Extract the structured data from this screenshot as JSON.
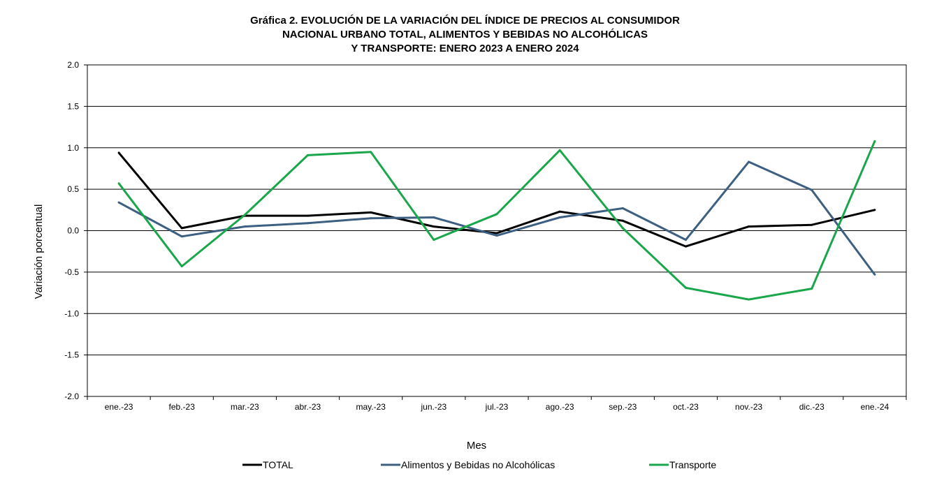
{
  "chart_data": {
    "type": "line",
    "title": [
      "Gráfica 2. EVOLUCIÓN DE LA VARIACIÓN DEL ÍNDICE DE PRECIOS AL CONSUMIDOR",
      "NACIONAL URBANO TOTAL, ALIMENTOS Y BEBIDAS NO ALCOHÓLICAS",
      "Y TRANSPORTE: ENERO 2023 A ENERO 2024"
    ],
    "xlabel": "Mes",
    "ylabel": "Variación porcentual",
    "ylim": [
      -2.0,
      2.0
    ],
    "yticks": [
      2.0,
      1.5,
      1.0,
      0.5,
      0.0,
      -0.5,
      -1.0,
      -1.5,
      -2.0
    ],
    "ytick_labels": [
      "2.0",
      "1.5",
      "1.0",
      "0.5",
      "0.0",
      "-0.5",
      "-1.0",
      "-1.5",
      "-2.0"
    ],
    "grid": true,
    "legend_position": "bottom",
    "categories": [
      "ene.-23",
      "feb.-23",
      "mar.-23",
      "abr.-23",
      "may.-23",
      "jun.-23",
      "jul.-23",
      "ago.-23",
      "sep.-23",
      "oct.-23",
      "nov.-23",
      "dic.-23",
      "ene.-24"
    ],
    "series": [
      {
        "name": "TOTAL",
        "color": "#000000",
        "values": [
          0.94,
          0.03,
          0.18,
          0.18,
          0.22,
          0.05,
          -0.03,
          0.23,
          0.12,
          -0.19,
          0.05,
          0.07,
          0.25
        ]
      },
      {
        "name": "Alimentos y Bebidas no Alcohólicas",
        "color": "#3c5f82",
        "values": [
          0.34,
          -0.07,
          0.05,
          0.09,
          0.15,
          0.16,
          -0.06,
          0.16,
          0.27,
          -0.11,
          0.83,
          0.49,
          -0.53
        ]
      },
      {
        "name": "Transporte",
        "color": "#1aa64a",
        "values": [
          0.57,
          -0.43,
          0.19,
          0.91,
          0.95,
          -0.11,
          0.2,
          0.97,
          0.03,
          -0.69,
          -0.83,
          -0.7,
          1.08
        ]
      }
    ]
  }
}
